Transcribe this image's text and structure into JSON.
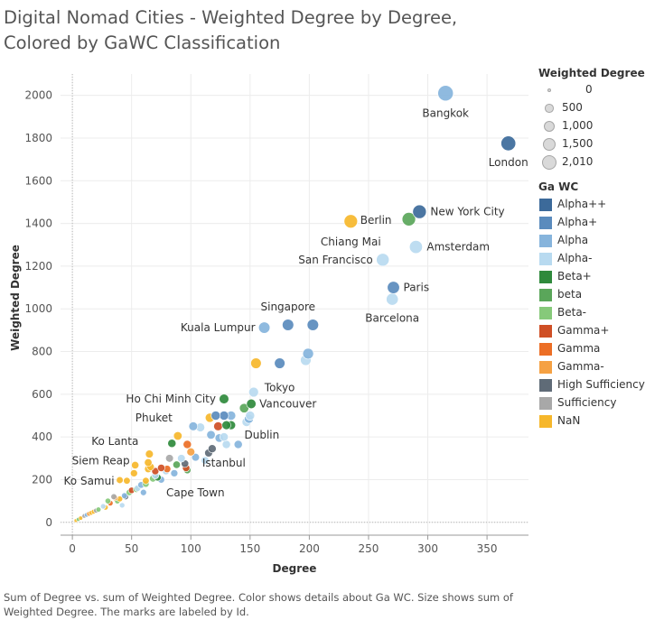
{
  "title": "Digital Nomad Cities - Weighted Degree by Degree, Colored by GaWC Classification",
  "caption": "Sum of Degree vs. sum of Weighted Degree.  Color shows details about Ga WC.  Size shows sum of Weighted Degree.  The marks are labeled by Id.",
  "size_legend": {
    "title": "Weighted Degree",
    "items": [
      {
        "label": "0",
        "value": 0
      },
      {
        "label": "500",
        "value": 500
      },
      {
        "label": "1,000",
        "value": 1000
      },
      {
        "label": "1,500",
        "value": 1500
      },
      {
        "label": "2,010",
        "value": 2010
      }
    ]
  },
  "color_legend": {
    "title": "Ga WC",
    "items": [
      {
        "label": "Alpha++",
        "color": "#3c6a9a"
      },
      {
        "label": "Alpha+",
        "color": "#5a8bbd"
      },
      {
        "label": "Alpha",
        "color": "#86b4dc"
      },
      {
        "label": "Alpha-",
        "color": "#b8daf0"
      },
      {
        "label": "Beta+",
        "color": "#2f8a3c"
      },
      {
        "label": "beta",
        "color": "#5aa65a"
      },
      {
        "label": "Beta-",
        "color": "#86c97a"
      },
      {
        "label": "Gamma+",
        "color": "#cf4f25"
      },
      {
        "label": "Gamma",
        "color": "#ec6e25"
      },
      {
        "label": "Gamma-",
        "color": "#f5a143"
      },
      {
        "label": "High Sufficiency",
        "color": "#5f6b77"
      },
      {
        "label": "Sufficiency",
        "color": "#a8a8a8"
      },
      {
        "label": "NaN",
        "color": "#f6b72b"
      }
    ]
  },
  "chart_data": {
    "type": "scatter",
    "xlabel": "Degree",
    "ylabel": "Weighted Degree",
    "xlim": [
      -10,
      385
    ],
    "ylim": [
      -60,
      2100
    ],
    "xticks": [
      "0",
      "50",
      "100",
      "150",
      "200",
      "250",
      "300",
      "350"
    ],
    "xtick_values": [
      0,
      50,
      100,
      150,
      200,
      250,
      300,
      350
    ],
    "yticks": [
      "0",
      "200",
      "400",
      "600",
      "800",
      "1000",
      "1200",
      "1400",
      "1600",
      "1800",
      "2000"
    ],
    "ytick_values": [
      0,
      200,
      400,
      600,
      800,
      1000,
      1200,
      1400,
      1600,
      1800,
      2000
    ],
    "labeled_points": [
      {
        "id": "Bangkok",
        "x": 315,
        "y": 2010,
        "cls": "Alpha"
      },
      {
        "id": "London",
        "x": 368,
        "y": 1775,
        "cls": "Alpha++"
      },
      {
        "id": "New York City",
        "x": 293,
        "y": 1455,
        "cls": "Alpha++"
      },
      {
        "id": "Berlin",
        "x": 284,
        "y": 1420,
        "cls": "beta"
      },
      {
        "id": "Chiang Mai",
        "x": 235,
        "y": 1410,
        "cls": "NaN"
      },
      {
        "id": "Amsterdam",
        "x": 290,
        "y": 1290,
        "cls": "Alpha-"
      },
      {
        "id": "San Francisco",
        "x": 262,
        "y": 1230,
        "cls": "Alpha-"
      },
      {
        "id": "Paris",
        "x": 271,
        "y": 1100,
        "cls": "Alpha+"
      },
      {
        "id": "Barcelona",
        "x": 270,
        "y": 1045,
        "cls": "Alpha-"
      },
      {
        "id": "Singapore",
        "x": 182,
        "y": 925,
        "cls": "Alpha+"
      },
      {
        "id": "Kuala Lumpur",
        "x": 162,
        "y": 912,
        "cls": "Alpha"
      },
      {
        "id": "Tokyo",
        "x": 175,
        "y": 745,
        "cls": "Alpha+"
      },
      {
        "id": "Ho Chi Minh City",
        "x": 128,
        "y": 578,
        "cls": "Beta+"
      },
      {
        "id": "Vancouver",
        "x": 151,
        "y": 555,
        "cls": "Beta+"
      },
      {
        "id": "Dublin",
        "x": 149,
        "y": 485,
        "cls": "Alpha"
      },
      {
        "id": "Phuket",
        "x": 89,
        "y": 405,
        "cls": "NaN"
      },
      {
        "id": "Istanbul",
        "x": 118,
        "y": 345,
        "cls": "High Sufficiency"
      },
      {
        "id": "Ko Lanta",
        "x": 65,
        "y": 320,
        "cls": "NaN"
      },
      {
        "id": "Siem Reap",
        "x": 53,
        "y": 268,
        "cls": "NaN"
      },
      {
        "id": "Cape Town",
        "x": 97,
        "y": 245,
        "cls": "beta"
      },
      {
        "id": "Ko Samui",
        "x": 40,
        "y": 198,
        "cls": "NaN"
      }
    ],
    "other_points": [
      [
        203,
        925,
        "Alpha+"
      ],
      [
        199,
        790,
        "Alpha"
      ],
      [
        197,
        760,
        "Alpha-"
      ],
      [
        155,
        745,
        "NaN"
      ],
      [
        153,
        610,
        "Alpha-"
      ],
      [
        145,
        535,
        "beta"
      ],
      [
        134,
        455,
        "Beta+"
      ],
      [
        130,
        455,
        "Beta+"
      ],
      [
        134,
        500,
        "Alpha"
      ],
      [
        128,
        500,
        "Alpha+"
      ],
      [
        121,
        500,
        "Alpha+"
      ],
      [
        116,
        490,
        "NaN"
      ],
      [
        150,
        500,
        "Alpha-"
      ],
      [
        147,
        470,
        "Alpha-"
      ],
      [
        123,
        450,
        "Gamma+"
      ],
      [
        102,
        450,
        "Alpha"
      ],
      [
        108,
        445,
        "Alpha-"
      ],
      [
        124,
        395,
        "Alpha"
      ],
      [
        128,
        400,
        "Alpha-"
      ],
      [
        117,
        410,
        "Alpha"
      ],
      [
        140,
        365,
        "Alpha"
      ],
      [
        130,
        365,
        "Alpha-"
      ],
      [
        84,
        370,
        "Beta+"
      ],
      [
        97,
        365,
        "Gamma"
      ],
      [
        100,
        330,
        "Gamma-"
      ],
      [
        115,
        325,
        "High Sufficiency"
      ],
      [
        104,
        305,
        "Alpha"
      ],
      [
        112,
        290,
        "Alpha-"
      ],
      [
        82,
        300,
        "Sufficiency"
      ],
      [
        95,
        275,
        "High Sufficiency"
      ],
      [
        88,
        270,
        "beta"
      ],
      [
        96,
        255,
        "Gamma+"
      ],
      [
        79,
        240,
        "Alpha-"
      ],
      [
        75,
        255,
        "Gamma+"
      ],
      [
        70,
        240,
        "Gamma+"
      ],
      [
        64,
        280,
        "NaN"
      ],
      [
        64,
        250,
        "NaN"
      ],
      [
        75,
        200,
        "Alpha"
      ],
      [
        68,
        205,
        "Beta-"
      ],
      [
        62,
        180,
        "Beta-"
      ],
      [
        55,
        160,
        "Alpha-"
      ],
      [
        46,
        195,
        "NaN"
      ],
      [
        60,
        140,
        "Alpha"
      ],
      [
        52,
        230,
        "NaN"
      ],
      [
        48,
        140,
        "Beta-"
      ],
      [
        45,
        120,
        "High Sufficiency"
      ],
      [
        35,
        120,
        "Sufficiency"
      ],
      [
        38,
        100,
        "Beta-"
      ],
      [
        32,
        90,
        "Gamma"
      ],
      [
        42,
        80,
        "Alpha-"
      ],
      [
        28,
        70,
        "NaN"
      ],
      [
        22,
        60,
        "Beta-"
      ],
      [
        18,
        50,
        "NaN"
      ],
      [
        14,
        40,
        "Gamma-"
      ],
      [
        10,
        30,
        "Sufficiency"
      ],
      [
        7,
        20,
        "NaN"
      ],
      [
        5,
        14,
        "Beta-"
      ],
      [
        3,
        8,
        "NaN"
      ],
      [
        66,
        260,
        "NaN"
      ],
      [
        72,
        210,
        "Beta+"
      ],
      [
        58,
        175,
        "Alpha"
      ],
      [
        50,
        150,
        "Gamma+"
      ],
      [
        86,
        230,
        "Alpha"
      ],
      [
        92,
        300,
        "Alpha-"
      ],
      [
        40,
        110,
        "NaN"
      ],
      [
        26,
        75,
        "Alpha-"
      ],
      [
        20,
        55,
        "Sufficiency"
      ],
      [
        30,
        100,
        "Beta-"
      ],
      [
        36,
        115,
        "Gamma-"
      ],
      [
        12,
        35,
        "Alpha"
      ],
      [
        16,
        45,
        "NaN"
      ],
      [
        44,
        125,
        "Alpha"
      ],
      [
        54,
        155,
        "Beta-"
      ],
      [
        62,
        195,
        "NaN"
      ],
      [
        70,
        220,
        "Alpha-"
      ],
      [
        80,
        250,
        "Gamma"
      ]
    ]
  }
}
